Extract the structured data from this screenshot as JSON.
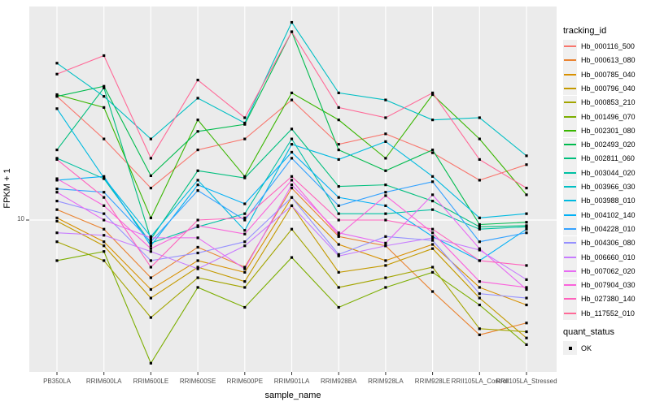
{
  "chart_data": {
    "type": "line",
    "title": "",
    "xlabel": "sample_name",
    "ylabel": "FPKM + 1",
    "y_scale": "log10",
    "y_tick_labels": [
      "10"
    ],
    "ylim": [
      2.5,
      70
    ],
    "grid": "major",
    "legend_position": "right",
    "panel_background": "#EBEBEB",
    "gridline_color": "#FFFFFF",
    "point_color": "#000000",
    "categories": [
      "PB350LA",
      "RRIM600LA",
      "RRIM600LE",
      "RRIM600SE",
      "RRIM600PE",
      "RRIM901LA",
      "RRIM928BA",
      "RRIM928LA",
      "RRIM928LE",
      "RRII105LA_Control",
      "RRII105LA_Stressed"
    ],
    "series": [
      {
        "name": "Hb_000116_500",
        "color": "#F8766D",
        "values": [
          31,
          21,
          13.4,
          19,
          21,
          30,
          20,
          22,
          18.5,
          14.4,
          16.6
        ]
      },
      {
        "name": "Hb_000613_080",
        "color": "#EA8331",
        "values": [
          11,
          9.2,
          5.9,
          7.8,
          6.5,
          13.4,
          8.6,
          7.9,
          5.2,
          3.5,
          3.9
        ]
      },
      {
        "name": "Hb_000785_040",
        "color": "#D89000",
        "values": [
          10.2,
          8.2,
          5.3,
          6.9,
          6.2,
          12.3,
          8.0,
          6.9,
          8.0,
          5.4,
          4.6
        ]
      },
      {
        "name": "Hb_000796_040",
        "color": "#C49A00",
        "values": [
          9.9,
          7.9,
          4.9,
          6.5,
          5.7,
          11.4,
          6.2,
          6.6,
          7.7,
          4.9,
          3.4
        ]
      },
      {
        "name": "Hb_000853_210",
        "color": "#A3A500",
        "values": [
          8.2,
          6.9,
          4.1,
          5.9,
          5.4,
          9.2,
          5.4,
          5.9,
          6.5,
          3.7,
          3.6
        ]
      },
      {
        "name": "Hb_001496_070",
        "color": "#7CAE00",
        "values": [
          6.9,
          7.5,
          2.7,
          5.4,
          4.5,
          7.1,
          4.5,
          5.4,
          6.2,
          4.6,
          3.2
        ]
      },
      {
        "name": "Hb_002301_080",
        "color": "#39B600",
        "values": [
          31.5,
          28,
          10.2,
          25,
          14.9,
          32,
          25,
          17.6,
          31.5,
          21,
          12.6
        ]
      },
      {
        "name": "Hb_002493_020",
        "color": "#00BB4E",
        "values": [
          31,
          34,
          15,
          22.5,
          24,
          56,
          19,
          15.7,
          19,
          9.6,
          9.8
        ]
      },
      {
        "name": "Hb_002811_060",
        "color": "#00BF7D",
        "values": [
          19,
          33.5,
          8.4,
          15.7,
          14.7,
          23,
          13.6,
          13.8,
          11.9,
          9.4,
          9.5
        ]
      },
      {
        "name": "Hb_003044_020",
        "color": "#00C1A3",
        "values": [
          17.6,
          14.6,
          8.1,
          9.4,
          10.6,
          21,
          10.6,
          10.6,
          11,
          9.2,
          9.4
        ]
      },
      {
        "name": "Hb_003966_030",
        "color": "#00BFC4",
        "values": [
          42,
          31,
          21,
          30.5,
          24.3,
          61,
          32,
          30,
          25,
          25.5,
          18
        ]
      },
      {
        "name": "Hb_003988_010",
        "color": "#00BAE0",
        "values": [
          27.7,
          14.7,
          8.6,
          14.4,
          9.1,
          20,
          17.4,
          20.5,
          14.9,
          10.2,
          10.6
        ]
      },
      {
        "name": "Hb_004102_140",
        "color": "#00B0F6",
        "values": [
          14.4,
          14.9,
          7.9,
          13.8,
          11.6,
          18.6,
          12.3,
          11.4,
          8.6,
          6.9,
          9.2
        ]
      },
      {
        "name": "Hb_004228_010",
        "color": "#35A2FF",
        "values": [
          13.3,
          12.9,
          8.2,
          13.1,
          10,
          17.6,
          11.4,
          12.9,
          14.2,
          8.2,
          8.9
        ]
      },
      {
        "name": "Hb_004306_080",
        "color": "#9590FF",
        "values": [
          11.9,
          10.6,
          6.9,
          7.4,
          8.2,
          12.3,
          7.3,
          8.6,
          8.3,
          5.1,
          4.9
        ]
      },
      {
        "name": "Hb_006660_010",
        "color": "#C77CFF",
        "values": [
          8.9,
          8.7,
          7.5,
          6.4,
          7.9,
          11.4,
          7.2,
          7.9,
          8.5,
          7.6,
          5.8
        ]
      },
      {
        "name": "Hb_007062_020",
        "color": "#E76BF3",
        "values": [
          12.9,
          10,
          8.5,
          8.5,
          6.4,
          13.8,
          8.9,
          8.1,
          12.6,
          7.7,
          5.3
        ]
      },
      {
        "name": "Hb_007904_030",
        "color": "#FA62DB",
        "values": [
          14.6,
          11.4,
          7.7,
          9.5,
          8.8,
          14.4,
          8.7,
          12.5,
          8.9,
          5.7,
          5.4
        ]
      },
      {
        "name": "Hb_027380_140",
        "color": "#FF62BC",
        "values": [
          17.4,
          12.3,
          6.5,
          10,
          10.2,
          14.9,
          10,
          10,
          9.2,
          6.9,
          6.6
        ]
      },
      {
        "name": "Hb_117552_010",
        "color": "#FF6A98",
        "values": [
          38,
          45,
          17.6,
          36,
          25.5,
          56,
          28,
          25.5,
          32,
          17.4,
          13.4
        ]
      }
    ]
  },
  "legend": {
    "tracking_title": "tracking_id",
    "quant_title": "quant_status",
    "quant_items": [
      "OK"
    ]
  }
}
